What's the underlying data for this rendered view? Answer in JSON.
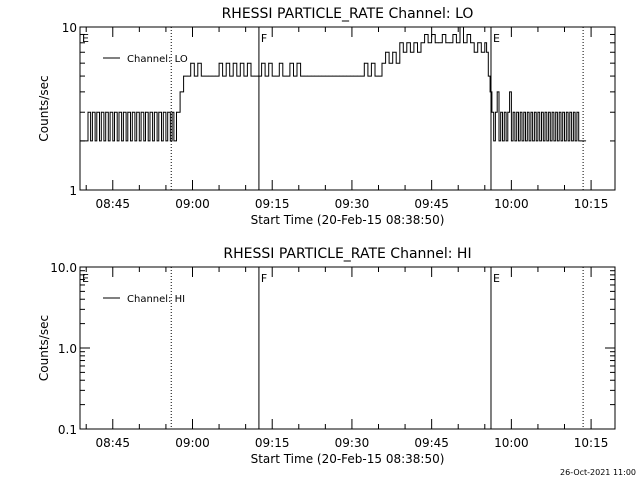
{
  "stamp": "26-Oct-2021 11:00",
  "chart_data": [
    {
      "type": "line",
      "title": "RHESSI PARTICLE_RATE Channel: LO",
      "xlabel": "Start Time (20-Feb-15 08:38:50)",
      "ylabel": "Counts/sec",
      "yscale": "log",
      "ylim": [
        1,
        10
      ],
      "yticks": [
        "1",
        "10"
      ],
      "xlim": [
        "08:38:50",
        "10:19:30"
      ],
      "xticks": [
        "08:45",
        "09:00",
        "09:15",
        "09:30",
        "09:45",
        "10:00",
        "10:15"
      ],
      "legend": {
        "position": "top-left",
        "entries": [
          "Channel: LO"
        ]
      },
      "series": [
        {
          "name": "Channel: LO",
          "x": [
            "08:38:50",
            "08:40:00",
            "08:40:20",
            "08:40:50",
            "08:41:10",
            "08:41:40",
            "08:42:00",
            "08:42:30",
            "08:42:50",
            "08:43:20",
            "08:43:40",
            "08:44:10",
            "08:44:30",
            "08:45:00",
            "08:45:20",
            "08:45:50",
            "08:46:10",
            "08:46:40",
            "08:47:00",
            "08:47:30",
            "08:47:50",
            "08:48:20",
            "08:48:40",
            "08:49:10",
            "08:49:30",
            "08:50:00",
            "08:50:20",
            "08:50:50",
            "08:51:10",
            "08:51:40",
            "08:52:00",
            "08:52:30",
            "08:52:50",
            "08:53:20",
            "08:53:40",
            "08:54:10",
            "08:54:30",
            "08:55:00",
            "08:55:20",
            "08:55:50",
            "08:56:10",
            "08:56:30",
            "08:57:00",
            "08:57:40",
            "08:58:20",
            "08:59:00",
            "08:59:40",
            "09:00:20",
            "09:01:00",
            "09:01:40",
            "09:02:20",
            "09:03:00",
            "09:03:40",
            "09:04:20",
            "09:05:00",
            "09:05:40",
            "09:06:20",
            "09:07:00",
            "09:07:40",
            "09:08:20",
            "09:09:00",
            "09:09:40",
            "09:10:20",
            "09:11:00",
            "09:11:40",
            "09:12:20",
            "09:13:00",
            "09:13:40",
            "09:14:20",
            "09:15:00",
            "09:15:40",
            "09:16:20",
            "09:17:00",
            "09:17:40",
            "09:18:20",
            "09:19:00",
            "09:19:40",
            "09:20:20",
            "09:21:00",
            "09:21:40",
            "09:22:20",
            "09:23:00",
            "09:23:40",
            "09:24:20",
            "09:25:00",
            "09:25:40",
            "09:26:20",
            "09:27:00",
            "09:27:40",
            "09:28:20",
            "09:29:00",
            "09:29:40",
            "09:30:20",
            "09:31:00",
            "09:31:40",
            "09:32:20",
            "09:33:00",
            "09:33:40",
            "09:34:20",
            "09:35:00",
            "09:35:40",
            "09:36:20",
            "09:37:00",
            "09:37:40",
            "09:38:20",
            "09:39:00",
            "09:39:40",
            "09:40:20",
            "09:41:00",
            "09:41:40",
            "09:42:20",
            "09:43:00",
            "09:43:40",
            "09:44:20",
            "09:45:00",
            "09:45:40",
            "09:46:20",
            "09:47:00",
            "09:47:40",
            "09:48:20",
            "09:49:00",
            "09:49:40",
            "09:50:20",
            "09:51:00",
            "09:51:40",
            "09:52:20",
            "09:53:00",
            "09:53:40",
            "09:54:20",
            "09:55:00",
            "09:55:20",
            "09:55:40",
            "09:56:00",
            "09:56:20",
            "09:56:40",
            "09:57:00",
            "09:57:20",
            "09:57:40",
            "09:58:00",
            "09:58:20",
            "09:58:40",
            "09:59:00",
            "09:59:20",
            "09:59:40",
            "10:00:00",
            "10:00:20",
            "10:00:40",
            "10:01:00",
            "10:01:20",
            "10:01:40",
            "10:02:00",
            "10:02:20",
            "10:02:40",
            "10:03:00",
            "10:03:20",
            "10:03:40",
            "10:04:00",
            "10:04:20",
            "10:04:40",
            "10:05:00",
            "10:05:20",
            "10:05:40",
            "10:06:00",
            "10:06:20",
            "10:06:40",
            "10:07:00",
            "10:07:20",
            "10:07:40",
            "10:08:00",
            "10:08:20",
            "10:08:40",
            "10:09:00",
            "10:09:20",
            "10:09:40",
            "10:10:00",
            "10:10:20",
            "10:10:40",
            "10:11:00",
            "10:11:20",
            "10:11:40",
            "10:12:00",
            "10:12:20",
            "10:12:40",
            "10:13:00",
            "10:14:00"
          ],
          "values": [
            2,
            2,
            3,
            2,
            3,
            2,
            3,
            2,
            3,
            2,
            3,
            2,
            3,
            2,
            3,
            2,
            3,
            2,
            3,
            2,
            3,
            2,
            3,
            2,
            3,
            2,
            3,
            2,
            3,
            2,
            3,
            2,
            3,
            2,
            3,
            2,
            3,
            2,
            3,
            2,
            3,
            2,
            3,
            4,
            5,
            5,
            6,
            5,
            6,
            5,
            5,
            5,
            5,
            5,
            6,
            5,
            6,
            5,
            6,
            5,
            6,
            5,
            6,
            5,
            5,
            5,
            6,
            5,
            6,
            5,
            5,
            6,
            5,
            5,
            6,
            5,
            6,
            5,
            5,
            5,
            5,
            5,
            5,
            5,
            5,
            5,
            5,
            5,
            5,
            5,
            5,
            5,
            5,
            5,
            5,
            6,
            5,
            6,
            5,
            5,
            6,
            7,
            6,
            7,
            6,
            8,
            7,
            8,
            7,
            8,
            7,
            8,
            9,
            8,
            9,
            8,
            8,
            9,
            8,
            8,
            9,
            8,
            10,
            8,
            9,
            8,
            7,
            8,
            7,
            8,
            7,
            5,
            4,
            3,
            2,
            3,
            4,
            2,
            3,
            2,
            3,
            2,
            3,
            4,
            2,
            3,
            2,
            3,
            2,
            3,
            2,
            3,
            2,
            3,
            2,
            3,
            2,
            3,
            2,
            3,
            2,
            3,
            2,
            3,
            2,
            3,
            2,
            3,
            2,
            3,
            2,
            3,
            2,
            3,
            2,
            3,
            2,
            3,
            2,
            3,
            2,
            3,
            2,
            2,
            2
          ]
        }
      ],
      "markers": [
        {
          "label": "E",
          "x": "08:38:50",
          "style": "dotted"
        },
        {
          "label": "",
          "x": "08:56:00",
          "style": "dotted"
        },
        {
          "label": "F",
          "x": "09:12:30",
          "style": "solid"
        },
        {
          "label": "E",
          "x": "09:56:10",
          "style": "solid"
        },
        {
          "label": "",
          "x": "10:13:30",
          "style": "dotted"
        }
      ]
    },
    {
      "type": "line",
      "title": "RHESSI PARTICLE_RATE Channel: HI",
      "xlabel": "Start Time (20-Feb-15 08:38:50)",
      "ylabel": "Counts/sec",
      "yscale": "log",
      "ylim": [
        0.1,
        10
      ],
      "yticks": [
        "0.1",
        "1.0",
        "10.0"
      ],
      "xlim": [
        "08:38:50",
        "10:19:30"
      ],
      "xticks": [
        "08:45",
        "09:00",
        "09:15",
        "09:30",
        "09:45",
        "10:00",
        "10:15"
      ],
      "legend": {
        "position": "top-left",
        "entries": [
          "Channel: HI"
        ]
      },
      "series": [
        {
          "name": "Channel: HI",
          "x": [],
          "values": []
        }
      ],
      "markers": [
        {
          "label": "E",
          "x": "08:38:50",
          "style": "dotted"
        },
        {
          "label": "",
          "x": "08:56:00",
          "style": "dotted"
        },
        {
          "label": "F",
          "x": "09:12:30",
          "style": "solid"
        },
        {
          "label": "E",
          "x": "09:56:10",
          "style": "solid"
        },
        {
          "label": "",
          "x": "10:13:30",
          "style": "dotted"
        }
      ]
    }
  ]
}
